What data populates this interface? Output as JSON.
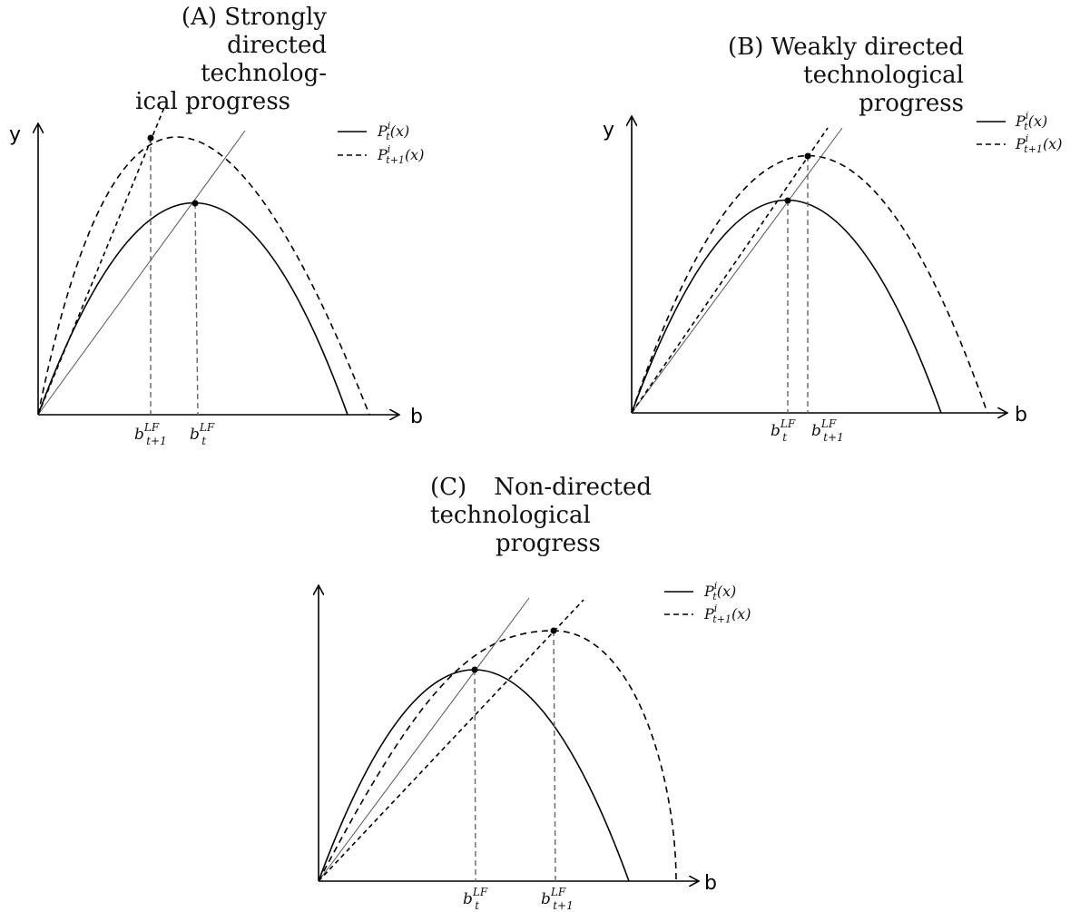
{
  "panels": [
    {
      "id": "a",
      "caption": {
        "label": "(A)",
        "lines": [
          "Strongly",
          "directed technolog-",
          "ical progress"
        ]
      },
      "y_axis_label": "y",
      "x_axis_label": "b",
      "legend": [
        {
          "style": "solid",
          "base": "P",
          "sup": "i",
          "sub": "t",
          "arg": "(x)"
        },
        {
          "style": "dashed",
          "base": "P",
          "sup": "i",
          "sub": "t+1",
          "arg": "(x)"
        }
      ],
      "tick_labels": [
        {
          "base": "b",
          "sup": "LF",
          "sub": "t+1"
        },
        {
          "base": "b",
          "sup": "LF",
          "sub": "t"
        }
      ]
    },
    {
      "id": "b",
      "caption": {
        "label": "(B)",
        "lines": [
          "Weakly directed",
          "technological progress"
        ]
      },
      "y_axis_label": "y",
      "x_axis_label": "b",
      "legend": [
        {
          "style": "solid",
          "base": "P",
          "sup": "i",
          "sub": "t",
          "arg": "(x)"
        },
        {
          "style": "dashed",
          "base": "P",
          "sup": "i",
          "sub": "t+1",
          "arg": "(x)"
        }
      ],
      "tick_labels": [
        {
          "base": "b",
          "sup": "LF",
          "sub": "t"
        },
        {
          "base": "b",
          "sup": "LF",
          "sub": "t+1"
        }
      ]
    },
    {
      "id": "c",
      "caption": {
        "label": "(C)",
        "lines": [
          "Non-directed",
          "technological",
          "progress"
        ]
      },
      "y_axis_label": "",
      "x_axis_label": "b",
      "legend": [
        {
          "style": "solid",
          "base": "P",
          "sup": "i",
          "sub": "t",
          "arg": "(x)"
        },
        {
          "style": "dashed",
          "base": "P",
          "sup": "i",
          "sub": "t+1",
          "arg": "(x)"
        }
      ],
      "tick_labels": [
        {
          "base": "b",
          "sup": "LF",
          "sub": "t"
        },
        {
          "base": "b",
          "sup": "LF",
          "sub": "t+1"
        }
      ]
    }
  ]
}
